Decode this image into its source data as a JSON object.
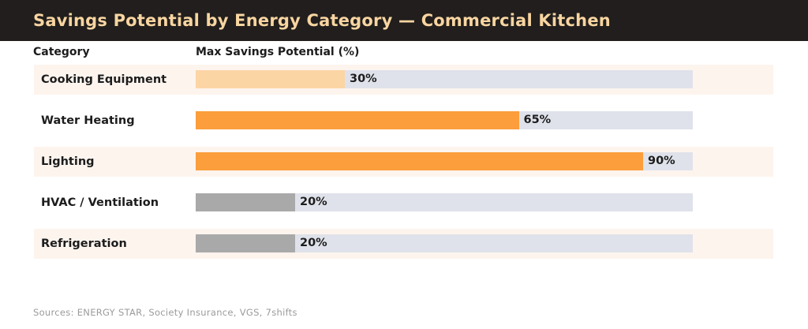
{
  "header": {
    "title": "Savings Potential by Energy Category — Commercial Kitchen"
  },
  "footer": {
    "source": "Sources: ENERGY STAR, Society Insurance, VGS, 7shifts"
  },
  "chart_data": {
    "type": "bar",
    "orientation": "horizontal",
    "title": "Savings Potential by Energy Category — Commercial Kitchen",
    "column_headers": {
      "category": "Category",
      "value": "Max Savings Potential (%)"
    },
    "xlim": [
      0,
      100
    ],
    "grid": false,
    "legend": "none",
    "categories": [
      "Cooking Equipment",
      "Water Heating",
      "Lighting",
      "HVAC / Ventilation",
      "Refrigeration"
    ],
    "values": [
      30,
      65,
      90,
      20,
      20
    ],
    "rows": [
      {
        "category": "Cooking Equipment",
        "value": 30,
        "label": "30%",
        "bar_color": "#fcd5a5"
      },
      {
        "category": "Water Heating",
        "value": 65,
        "label": "65%",
        "bar_color": "#fb9e3b"
      },
      {
        "category": "Lighting",
        "value": 90,
        "label": "90%",
        "bar_color": "#fb9e3b"
      },
      {
        "category": "HVAC / Ventilation",
        "value": 20,
        "label": "20%",
        "bar_color": "#a9a9a9"
      },
      {
        "category": "Refrigeration",
        "value": 20,
        "label": "20%",
        "bar_color": "#a9a9a9"
      }
    ],
    "colors": {
      "header_background": "#211e1d",
      "title_text": "#f8d5a1",
      "accent_orange": "#fb9e3b",
      "light_orange": "#fcd5a5",
      "muted_gray_bar": "#a9a9a9",
      "bar_track": "#dfe2ea",
      "row_band": "#fdf4ee",
      "text_dark": "#1c1c1c",
      "source_text": "#9b9b9b"
    }
  }
}
